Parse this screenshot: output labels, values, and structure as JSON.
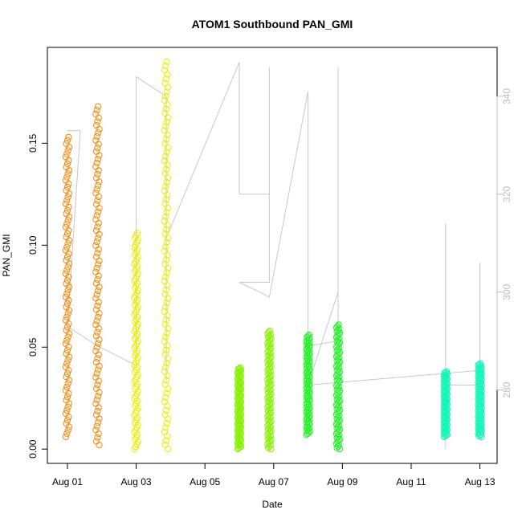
{
  "chart_data": {
    "type": "scatter",
    "title": "ATOM1 Southbound PAN_GMI",
    "xlabel": "Date",
    "ylabel": "PAN_GMI",
    "x_tick_labels": [
      "Aug 01",
      "Aug 03",
      "Aug 05",
      "Aug 07",
      "Aug 09",
      "Aug 11",
      "Aug 13"
    ],
    "xlim": [
      "2016-07-31T10:00",
      "2016-08-13T12:00"
    ],
    "ylim": [
      -0.007,
      0.197
    ],
    "y_ticks": [
      0.0,
      0.05,
      0.1,
      0.15
    ],
    "y_tick_labels": [
      "0.00",
      "0.05",
      "0.10",
      "0.15"
    ],
    "y2_ticks": [
      280,
      300,
      320,
      340
    ],
    "y2_tick_labels": [
      "280",
      "300",
      "320",
      "340"
    ],
    "y2lim": [
      265,
      350
    ],
    "series": [
      {
        "color": "#f5870a",
        "segments": [
          {
            "x": "2016-08-01T00:00",
            "ymin": 0.006,
            "ymax": 0.153,
            "dense_ymin": 0.006,
            "dense_ymax": 0.153
          },
          {
            "x": "2016-08-01T21:00",
            "ymin": 0.002,
            "ymax": 0.168,
            "dense_ymin": 0.002,
            "dense_ymax": 0.168
          }
        ]
      },
      {
        "color": "#e8f000",
        "segments": [
          {
            "x": "2016-08-03T00:00",
            "ymin": 0.0,
            "ymax": 0.106,
            "dense_ymin": 0.0,
            "dense_ymax": 0.106
          },
          {
            "x": "2016-08-03T21:00",
            "ymin": 0.0,
            "ymax": 0.19,
            "dense_ymin": 0.0,
            "dense_ymax": 0.19
          }
        ]
      },
      {
        "color": "#86f000",
        "segments": [
          {
            "x": "2016-08-06T00:00",
            "ymin": 0.0,
            "ymax": 0.04,
            "dense_ymin": 0.0,
            "dense_ymax": 0.04
          },
          {
            "x": "2016-08-06T21:00",
            "ymin": 0.0,
            "ymax": 0.058,
            "dense_ymin": 0.0,
            "dense_ymax": 0.058
          }
        ]
      },
      {
        "color": "#22f028",
        "segments": [
          {
            "x": "2016-08-08T00:00",
            "ymin": 0.007,
            "ymax": 0.056,
            "dense_ymin": 0.007,
            "dense_ymax": 0.056
          },
          {
            "x": "2016-08-08T21:00",
            "ymin": 0.0,
            "ymax": 0.061,
            "dense_ymin": 0.0,
            "dense_ymax": 0.061
          }
        ]
      },
      {
        "color": "#14f5b8",
        "segments": [
          {
            "x": "2016-08-12T00:00",
            "ymin": 0.006,
            "ymax": 0.038,
            "dense_ymin": 0.006,
            "dense_ymax": 0.038
          },
          {
            "x": "2016-08-13T00:00",
            "ymin": 0.006,
            "ymax": 0.042,
            "dense_ymin": 0.006,
            "dense_ymax": 0.042
          }
        ]
      }
    ],
    "secondary_line": {
      "color": "#c8c8c8",
      "points": [
        [
          "2016-08-01T00:00",
          333
        ],
        [
          "2016-08-01T09:00",
          333
        ],
        [
          "2016-08-01T00:00",
          293
        ],
        [
          "2016-08-01T21:00",
          289
        ],
        [
          "2016-08-03T00:00",
          285
        ],
        [
          "2016-08-03T00:00",
          312
        ],
        [
          "2016-08-03T00:00",
          344
        ],
        [
          "2016-08-03T21:00",
          340
        ],
        [
          "2016-08-03T21:00",
          282
        ],
        [
          "2016-08-03T21:00",
          311
        ],
        [
          "2016-08-06T00:00",
          347
        ],
        [
          "2016-08-06T00:00",
          320
        ],
        [
          "2016-08-06T21:00",
          320
        ],
        [
          "2016-08-06T21:00",
          346
        ],
        [
          "2016-08-06T21:00",
          302
        ],
        [
          "2016-08-06T00:00",
          302
        ],
        [
          "2016-08-06T21:00",
          299
        ],
        [
          "2016-08-08T00:00",
          341
        ],
        [
          "2016-08-08T00:00",
          289
        ],
        [
          "2016-08-08T21:00",
          290
        ],
        [
          "2016-08-08T21:00",
          346
        ],
        [
          "2016-08-08T21:00",
          300
        ],
        [
          "2016-08-08T00:00",
          281
        ],
        [
          "2016-08-13T00:00",
          284
        ],
        [
          "2016-08-13T00:00",
          306
        ],
        [
          "2016-08-13T00:00",
          281
        ],
        [
          "2016-08-12T00:00",
          281
        ],
        [
          "2016-08-12T00:00",
          314
        ],
        [
          "2016-08-12T00:00",
          268
        ]
      ]
    },
    "grid": false,
    "legend": "none"
  }
}
